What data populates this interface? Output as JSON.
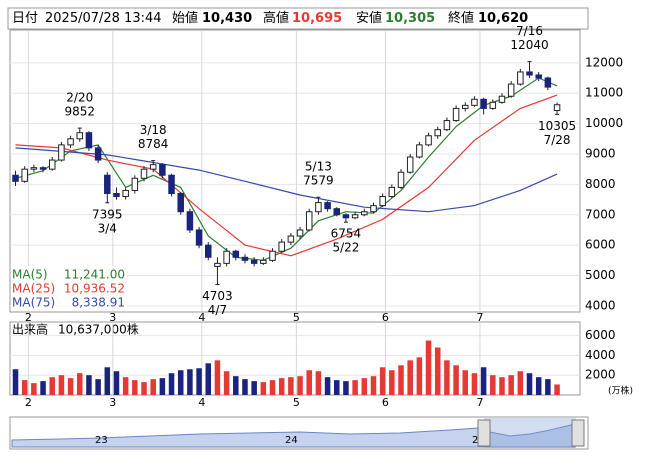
{
  "chart_data": {
    "type": "candlestick",
    "header": {
      "date_label": "日付",
      "date": "2025/07/28 13:44",
      "open_label": "始値",
      "open": "10,430",
      "high_label": "高値",
      "high": "10,695",
      "low_label": "安値",
      "low": "10,305",
      "close_label": "終値",
      "close": "10,620"
    },
    "xlim": [
      -0.6,
      61.5
    ],
    "xticks": [
      {
        "value": 1.4,
        "label": "2"
      },
      {
        "value": 10.6,
        "label": "3"
      },
      {
        "value": 20.3,
        "label": "4"
      },
      {
        "value": 30.6,
        "label": "5"
      },
      {
        "value": 40.3,
        "label": "6"
      },
      {
        "value": 50.6,
        "label": "7"
      }
    ],
    "ylim": [
      3800,
      13080
    ],
    "yticks": [
      4000,
      5000,
      6000,
      7000,
      8000,
      9000,
      10000,
      11000,
      12000
    ],
    "up_color": "#ffffff",
    "down_color": "#1a237e",
    "candles": [
      [
        8300,
        8450,
        7950,
        8100
      ],
      [
        8100,
        8600,
        8050,
        8500
      ],
      [
        8500,
        8650,
        8400,
        8550
      ],
      [
        8550,
        8600,
        8400,
        8500
      ],
      [
        8500,
        8900,
        8450,
        8800
      ],
      [
        8800,
        9400,
        8750,
        9300
      ],
      [
        9300,
        9600,
        9200,
        9500
      ],
      [
        9500,
        9852,
        9400,
        9700
      ],
      [
        9700,
        9750,
        9100,
        9200
      ],
      [
        9200,
        9300,
        8700,
        8800
      ],
      [
        8300,
        8400,
        7395,
        7700
      ],
      [
        7700,
        7900,
        7500,
        7600
      ],
      [
        7600,
        7900,
        7500,
        7800
      ],
      [
        7800,
        8300,
        7700,
        8200
      ],
      [
        8200,
        8600,
        8100,
        8500
      ],
      [
        8500,
        8784,
        8400,
        8650
      ],
      [
        8650,
        8700,
        8200,
        8300
      ],
      [
        8300,
        8350,
        7600,
        7700
      ],
      [
        7700,
        7750,
        7000,
        7100
      ],
      [
        7100,
        7200,
        6400,
        6500
      ],
      [
        6500,
        6600,
        5900,
        6000
      ],
      [
        6000,
        6100,
        5500,
        5600
      ],
      [
        5300,
        5600,
        4703,
        5400
      ],
      [
        5400,
        5900,
        5300,
        5800
      ],
      [
        5800,
        5850,
        5500,
        5600
      ],
      [
        5600,
        5700,
        5400,
        5500
      ],
      [
        5500,
        5600,
        5300,
        5400
      ],
      [
        5400,
        5600,
        5350,
        5500
      ],
      [
        5500,
        5900,
        5450,
        5800
      ],
      [
        5800,
        6200,
        5750,
        6100
      ],
      [
        6100,
        6400,
        6000,
        6300
      ],
      [
        6300,
        6600,
        6200,
        6500
      ],
      [
        6500,
        7200,
        6450,
        7100
      ],
      [
        7100,
        7579,
        7000,
        7400
      ],
      [
        7400,
        7450,
        7100,
        7200
      ],
      [
        7200,
        7250,
        6950,
        7000
      ],
      [
        7000,
        7050,
        6754,
        6900
      ],
      [
        6900,
        7100,
        6850,
        7000
      ],
      [
        7000,
        7200,
        6950,
        7100
      ],
      [
        7100,
        7400,
        7050,
        7300
      ],
      [
        7300,
        7700,
        7250,
        7600
      ],
      [
        7600,
        8000,
        7550,
        7900
      ],
      [
        7900,
        8500,
        7850,
        8400
      ],
      [
        8400,
        9000,
        8350,
        8900
      ],
      [
        8900,
        9400,
        8850,
        9300
      ],
      [
        9300,
        9700,
        9250,
        9600
      ],
      [
        9600,
        9900,
        9500,
        9800
      ],
      [
        9800,
        10200,
        9750,
        10100
      ],
      [
        10100,
        10600,
        10050,
        10500
      ],
      [
        10500,
        10700,
        10400,
        10600
      ],
      [
        10600,
        10900,
        10550,
        10800
      ],
      [
        10800,
        10850,
        10300,
        10500
      ],
      [
        10500,
        10800,
        10450,
        10700
      ],
      [
        10700,
        11000,
        10650,
        10900
      ],
      [
        10900,
        11400,
        10850,
        11300
      ],
      [
        11300,
        11800,
        11250,
        11700
      ],
      [
        11700,
        12040,
        11500,
        11600
      ],
      [
        11600,
        11700,
        11400,
        11500
      ],
      [
        11500,
        11550,
        11100,
        11200
      ],
      [
        10430,
        10695,
        10305,
        10620
      ]
    ],
    "series": [
      {
        "name": "MA(5)",
        "color": "#2e7d32",
        "legend_value": "11,241.00",
        "x": [
          0,
          3,
          6,
          9,
          12,
          15,
          18,
          21,
          24,
          27,
          30,
          33,
          36,
          39,
          42,
          45,
          48,
          51,
          54,
          57,
          59
        ],
        "values": [
          8200,
          8450,
          9100,
          9300,
          7900,
          8300,
          7900,
          6300,
          5600,
          5500,
          5900,
          6800,
          7100,
          7050,
          7800,
          8900,
          9900,
          10600,
          10900,
          11500,
          11241
        ]
      },
      {
        "name": "MA(25)",
        "color": "#e53935",
        "legend_value": "10,936.52",
        "x": [
          0,
          5,
          10,
          15,
          20,
          25,
          30,
          35,
          40,
          45,
          50,
          55,
          59
        ],
        "values": [
          9300,
          9200,
          8800,
          8500,
          7200,
          6000,
          5650,
          6200,
          6850,
          7900,
          9450,
          10500,
          10937
        ]
      },
      {
        "name": "MA(75)",
        "color": "#3949ab",
        "legend_value": "8,338.91",
        "x": [
          0,
          10,
          20,
          25,
          31,
          38,
          45,
          50,
          55,
          59
        ],
        "values": [
          9200,
          8970,
          8470,
          8100,
          7650,
          7250,
          7100,
          7300,
          7800,
          8339
        ]
      }
    ],
    "annotations": [
      {
        "x": 7,
        "date": "2/20",
        "value": 9852
      },
      {
        "x": 10,
        "date": "3/4",
        "value": 7395
      },
      {
        "x": 15,
        "date": "3/18",
        "value": 8784
      },
      {
        "x": 22,
        "date": "4/7",
        "value": 4703
      },
      {
        "x": 33,
        "date": "5/13",
        "value": 7579
      },
      {
        "x": 36,
        "date": "5/22",
        "value": 6754
      },
      {
        "x": 56,
        "date": "7/16",
        "value": 12040
      },
      {
        "x": 59,
        "date": "7/28",
        "value": 10305
      }
    ],
    "volume": {
      "title": "出来高",
      "title_value": "10,637,000株",
      "unit": "(万株)",
      "up_color": "#e53935",
      "down_color": "#1a237e",
      "ylim": [
        0,
        7370
      ],
      "yticks": [
        2000,
        4000,
        6000
      ],
      "values": [
        2600,
        1500,
        1200,
        1400,
        1800,
        2000,
        1700,
        2200,
        2000,
        1600,
        2800,
        2400,
        1800,
        1500,
        1300,
        1600,
        1700,
        2200,
        2500,
        2600,
        2700,
        3200,
        3500,
        2400,
        1900,
        1600,
        1400,
        1300,
        1500,
        1700,
        1800,
        1900,
        2500,
        2400,
        1800,
        1500,
        1400,
        1500,
        1700,
        1900,
        2800,
        2500,
        3000,
        3500,
        3800,
        5500,
        4800,
        3500,
        3000,
        2500,
        2200,
        2800,
        2000,
        1800,
        2000,
        2400,
        2200,
        1800,
        1600,
        1063.7
      ]
    },
    "navigator": {
      "labels": [
        "23",
        "24",
        "2"
      ]
    }
  }
}
